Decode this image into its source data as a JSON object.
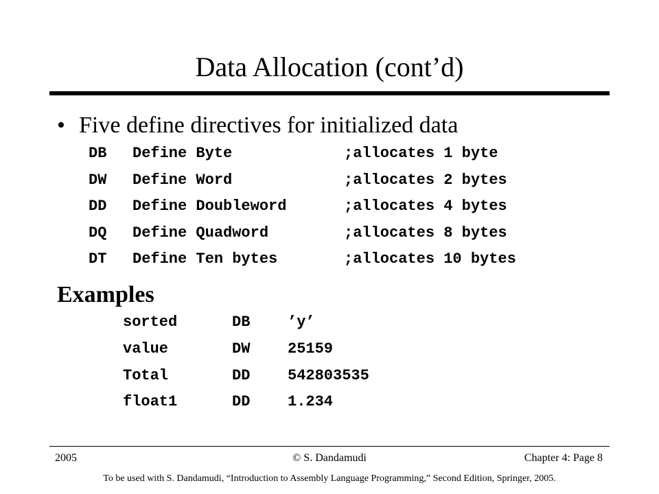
{
  "slide": {
    "title": "Data Allocation (cont’d)",
    "bullet_symbol": "•",
    "bullet_text": "Five define directives for initialized data",
    "directives": [
      {
        "code": "DB",
        "name": "Define Byte",
        "comment": ";allocates 1 byte"
      },
      {
        "code": "DW",
        "name": "Define Word",
        "comment": ";allocates 2 bytes"
      },
      {
        "code": "DD",
        "name": "Define Doubleword",
        "comment": ";allocates 4 bytes"
      },
      {
        "code": "DQ",
        "name": "Define Quadword",
        "comment": ";allocates 8 bytes"
      },
      {
        "code": "DT",
        "name": "Define Ten bytes",
        "comment": ";allocates 10 bytes"
      }
    ],
    "examples_heading": "Examples",
    "examples": [
      {
        "label": "sorted",
        "directive": "DB",
        "value": "’y’"
      },
      {
        "label": "value",
        "directive": "DW",
        "value": "25159"
      },
      {
        "label": "Total",
        "directive": "DD",
        "value": "542803535"
      },
      {
        "label": "float1",
        "directive": "DD",
        "value": "1.234"
      }
    ]
  },
  "footer": {
    "year": "2005",
    "author": "© S. Dandamudi",
    "page": "Chapter 4: Page 8",
    "note": "To be used with S. Dandamudi, “Introduction to Assembly Language Programming,” Second Edition, Springer, 2005."
  }
}
